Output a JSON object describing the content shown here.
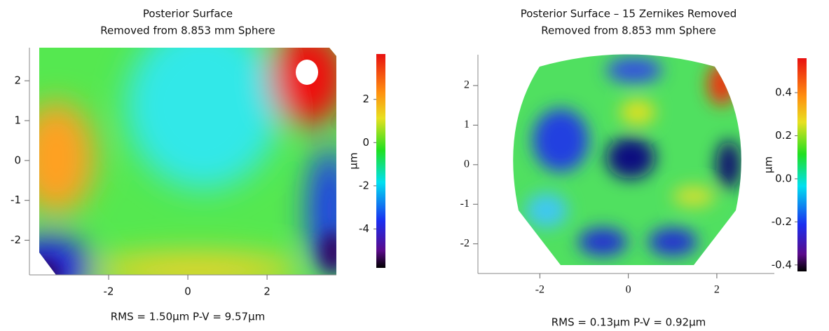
{
  "chart_data": [
    {
      "type": "heatmap",
      "title": "Posterior Surface",
      "subtitle": "Removed from 8.853 mm Sphere",
      "xlim": [
        -4.0,
        3.75
      ],
      "xticks": [
        -2,
        0,
        2
      ],
      "ylim": [
        -2.87,
        2.83
      ],
      "yticks": [
        -2,
        -1,
        0,
        1,
        2
      ],
      "clim": [
        -5.8,
        4.1
      ],
      "cticks": [
        -4,
        -2,
        0,
        2
      ],
      "colorbar_label": "μm",
      "annotation": "RMS = 1.50μm   P-V = 9.57μm"
    },
    {
      "type": "heatmap",
      "title": "Posterior Surface – 15 Zernikes Removed",
      "subtitle": "Removed from 8.853 mm Sphere",
      "xlim": [
        -3.4,
        3.3
      ],
      "xticks": [
        -2,
        0,
        2
      ],
      "ylim": [
        -2.75,
        2.78
      ],
      "yticks": [
        -2,
        -1,
        0,
        1,
        2
      ],
      "clim": [
        -0.43,
        0.56
      ],
      "cticks": [
        {
          "value": -0.4,
          "label": "-0.4"
        },
        {
          "value": -0.2,
          "label": "-0.2"
        },
        {
          "value": 0,
          "label": "0.0"
        },
        0.2,
        0.4
      ],
      "colorbar_label": "μm",
      "annotation": "RMS = 0.13μm   P-V = 0.92μm"
    }
  ]
}
